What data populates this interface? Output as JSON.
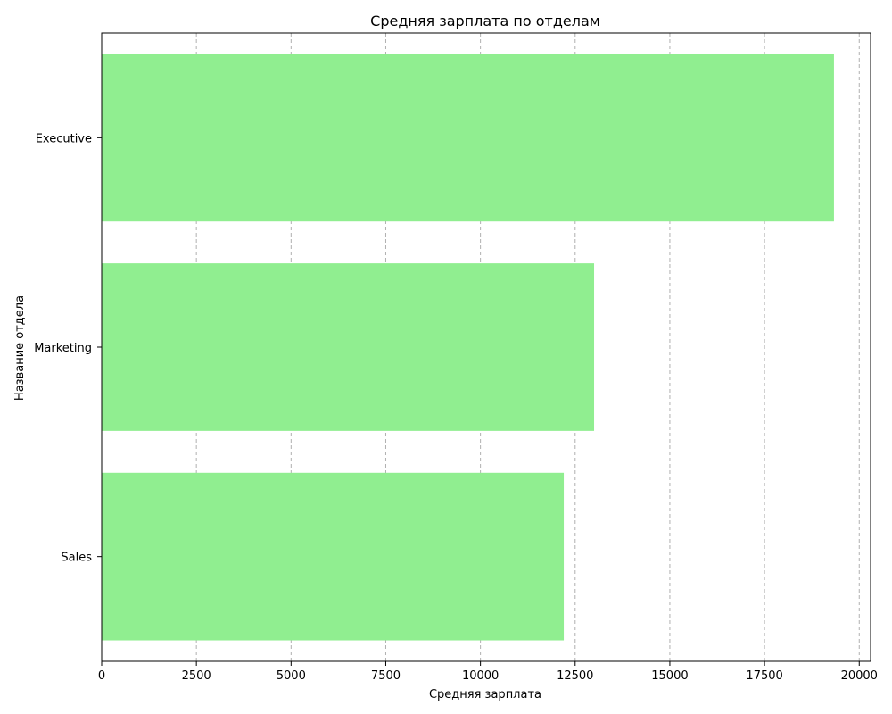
{
  "chart_data": {
    "type": "bar",
    "orientation": "horizontal",
    "title": "Средняя зарплата по отделам",
    "xlabel": "Средняя зарплата",
    "ylabel": "Название отдела",
    "categories": [
      "Executive",
      "Marketing",
      "Sales"
    ],
    "values": [
      19333,
      13000,
      12200
    ],
    "xlim": [
      0,
      20300
    ],
    "xticks": [
      0,
      2500,
      5000,
      7500,
      10000,
      12500,
      15000,
      17500,
      20000
    ],
    "grid": "vertical dashed",
    "legend": "none",
    "bar_color": "#90ee90"
  }
}
